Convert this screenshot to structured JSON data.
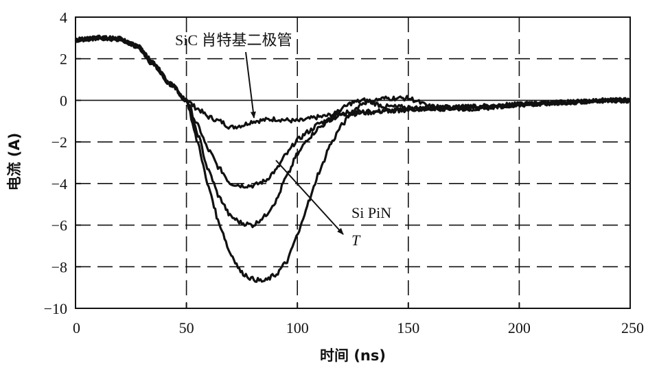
{
  "chart_data": {
    "type": "line",
    "title": "",
    "xlabel": "时间 (ns)",
    "ylabel": "电流 (A)",
    "xlim": [
      0,
      250
    ],
    "ylim": [
      -10,
      4
    ],
    "x_ticks": [
      "0",
      "50",
      "100",
      "150",
      "200",
      "250"
    ],
    "y_ticks": [
      "4",
      "2",
      "0",
      "−2",
      "−4",
      "−6",
      "−8",
      "−10"
    ],
    "grid": "dashed",
    "annotations": {
      "sic": "SiC 肖特基二极管",
      "sipin": "Si PiN",
      "temp": "T"
    },
    "series": [
      {
        "x": [
          0,
          10,
          20,
          28,
          35,
          42,
          50,
          55,
          60,
          65,
          70,
          75,
          80,
          90,
          100,
          110,
          120,
          140,
          160,
          180,
          200,
          220,
          240,
          250
        ],
        "y": [
          2.9,
          3.0,
          2.95,
          2.6,
          1.7,
          0.8,
          0.0,
          -0.4,
          -0.8,
          -1.0,
          -1.3,
          -1.2,
          -1.0,
          -0.9,
          -1.0,
          -0.8,
          -0.6,
          -0.5,
          -0.4,
          -0.3,
          -0.2,
          -0.1,
          0.0,
          0.0
        ]
      },
      {
        "x": [
          0,
          10,
          20,
          28,
          35,
          42,
          50,
          55,
          60,
          65,
          70,
          75,
          80,
          85,
          90,
          95,
          100,
          105,
          110,
          115,
          120,
          130,
          140,
          160,
          180,
          200,
          220,
          240,
          250
        ],
        "y": [
          2.9,
          3.0,
          2.95,
          2.6,
          1.8,
          0.9,
          0.0,
          -1.2,
          -2.4,
          -3.3,
          -4.0,
          -4.1,
          -4.1,
          -3.9,
          -3.4,
          -2.6,
          -1.9,
          -1.5,
          -1.1,
          -0.9,
          -0.7,
          -0.6,
          -0.5,
          -0.4,
          -0.3,
          -0.2,
          -0.1,
          0.0,
          0.0
        ]
      },
      {
        "x": [
          0,
          10,
          20,
          28,
          35,
          42,
          50,
          55,
          60,
          65,
          70,
          75,
          80,
          85,
          90,
          95,
          100,
          105,
          110,
          115,
          120,
          125,
          130,
          140,
          160,
          180,
          200,
          220,
          240,
          250
        ],
        "y": [
          2.9,
          3.0,
          2.95,
          2.6,
          1.8,
          0.9,
          0.0,
          -1.6,
          -3.4,
          -4.7,
          -5.6,
          -5.9,
          -6.0,
          -5.6,
          -4.9,
          -3.7,
          -2.6,
          -1.8,
          -1.3,
          -0.9,
          -0.4,
          -0.1,
          0.0,
          -0.3,
          -0.4,
          -0.4,
          -0.2,
          -0.1,
          0.0,
          0.0
        ]
      },
      {
        "x": [
          0,
          10,
          20,
          28,
          35,
          42,
          50,
          55,
          60,
          65,
          70,
          75,
          80,
          85,
          90,
          95,
          100,
          105,
          110,
          115,
          120,
          125,
          130,
          140,
          150,
          160,
          180,
          200,
          220,
          240,
          250
        ],
        "y": [
          2.9,
          3.0,
          2.95,
          2.6,
          1.8,
          0.9,
          0.0,
          -2.0,
          -4.2,
          -6.0,
          -7.4,
          -8.3,
          -8.6,
          -8.7,
          -8.4,
          -7.8,
          -6.5,
          -4.9,
          -3.4,
          -2.1,
          -1.2,
          -0.5,
          -0.1,
          0.1,
          0.1,
          -0.3,
          -0.4,
          -0.2,
          -0.1,
          0.0,
          0.0
        ]
      }
    ]
  }
}
